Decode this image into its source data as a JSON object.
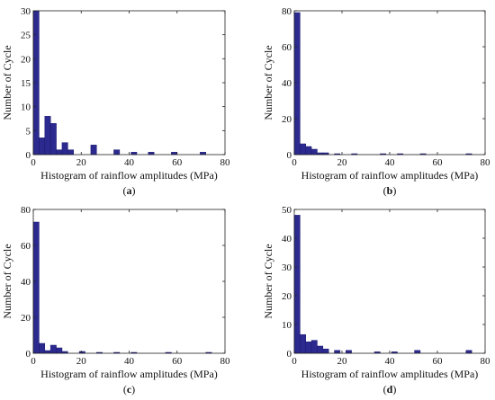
{
  "chart_data": [
    {
      "type": "bar",
      "panel_label": "a",
      "xlabel": "Histogram of rainflow amplitudes (MPa)",
      "ylabel": "Number of Cycle",
      "xlim": [
        0,
        80
      ],
      "ylim": [
        0,
        30
      ],
      "xticks": [
        0,
        20,
        40,
        60,
        80
      ],
      "yticks": [
        0,
        5,
        10,
        15,
        20,
        25,
        30
      ],
      "bin_width": 2.4,
      "bar_color": "#2c2a8e",
      "grid": false,
      "legend": "none",
      "bins": [
        {
          "x": 0,
          "value": 30
        },
        {
          "x": 2.4,
          "value": 3.5
        },
        {
          "x": 4.8,
          "value": 8
        },
        {
          "x": 7.2,
          "value": 6.5
        },
        {
          "x": 9.6,
          "value": 1
        },
        {
          "x": 12,
          "value": 2.5
        },
        {
          "x": 14.4,
          "value": 1
        },
        {
          "x": 24,
          "value": 2
        },
        {
          "x": 33.6,
          "value": 1
        },
        {
          "x": 40.8,
          "value": 0.5
        },
        {
          "x": 48,
          "value": 0.5
        },
        {
          "x": 57.6,
          "value": 0.5
        },
        {
          "x": 69.6,
          "value": 0.5
        }
      ]
    },
    {
      "type": "bar",
      "panel_label": "b",
      "xlabel": "Histogram of rainflow amplitudes (MPa)",
      "ylabel": "Number of Cycle",
      "xlim": [
        0,
        80
      ],
      "ylim": [
        0,
        80
      ],
      "xticks": [
        0,
        20,
        40,
        60,
        80
      ],
      "yticks": [
        0,
        20,
        40,
        60,
        80
      ],
      "bin_width": 2.4,
      "bar_color": "#2c2a8e",
      "grid": false,
      "legend": "none",
      "bins": [
        {
          "x": 0,
          "value": 79
        },
        {
          "x": 2.4,
          "value": 6
        },
        {
          "x": 4.8,
          "value": 4.5
        },
        {
          "x": 7.2,
          "value": 3
        },
        {
          "x": 9.6,
          "value": 1
        },
        {
          "x": 12,
          "value": 1
        },
        {
          "x": 16.8,
          "value": 0.5
        },
        {
          "x": 24,
          "value": 0.5
        },
        {
          "x": 36,
          "value": 0.5
        },
        {
          "x": 43.2,
          "value": 0.5
        },
        {
          "x": 52.8,
          "value": 0.5
        },
        {
          "x": 72,
          "value": 0.5
        }
      ]
    },
    {
      "type": "bar",
      "panel_label": "c",
      "xlabel": "Histogram of rainflow amplitudes (MPa)",
      "ylabel": "Number of Cycle",
      "xlim": [
        0,
        80
      ],
      "ylim": [
        0,
        80
      ],
      "xticks": [
        0,
        20,
        40,
        60,
        80
      ],
      "yticks": [
        0,
        20,
        40,
        60,
        80
      ],
      "bin_width": 2.4,
      "bar_color": "#2c2a8e",
      "grid": false,
      "legend": "none",
      "bins": [
        {
          "x": 0,
          "value": 73
        },
        {
          "x": 2.4,
          "value": 5.5
        },
        {
          "x": 4.8,
          "value": 1.5
        },
        {
          "x": 7.2,
          "value": 4.5
        },
        {
          "x": 9.6,
          "value": 3
        },
        {
          "x": 12,
          "value": 1
        },
        {
          "x": 19.2,
          "value": 1
        },
        {
          "x": 26.4,
          "value": 0.5
        },
        {
          "x": 33.6,
          "value": 0.5
        },
        {
          "x": 40.8,
          "value": 0.5
        },
        {
          "x": 55.2,
          "value": 0.5
        },
        {
          "x": 72,
          "value": 0.5
        }
      ]
    },
    {
      "type": "bar",
      "panel_label": "d",
      "xlabel": "Histogram of rainflow amplitudes (MPa)",
      "ylabel": "Number of Cycle",
      "xlim": [
        0,
        80
      ],
      "ylim": [
        0,
        50
      ],
      "xticks": [
        0,
        20,
        40,
        60,
        80
      ],
      "yticks": [
        0,
        10,
        20,
        30,
        40,
        50
      ],
      "bin_width": 2.4,
      "bar_color": "#2c2a8e",
      "grid": false,
      "legend": "none",
      "bins": [
        {
          "x": 0,
          "value": 48
        },
        {
          "x": 2.4,
          "value": 6.5
        },
        {
          "x": 4.8,
          "value": 4
        },
        {
          "x": 7.2,
          "value": 4.5
        },
        {
          "x": 9.6,
          "value": 2.5
        },
        {
          "x": 12,
          "value": 1.5
        },
        {
          "x": 16.8,
          "value": 1
        },
        {
          "x": 21.6,
          "value": 1
        },
        {
          "x": 33.6,
          "value": 0.5
        },
        {
          "x": 40.8,
          "value": 0.5
        },
        {
          "x": 50.4,
          "value": 1
        },
        {
          "x": 72,
          "value": 1
        }
      ]
    }
  ]
}
